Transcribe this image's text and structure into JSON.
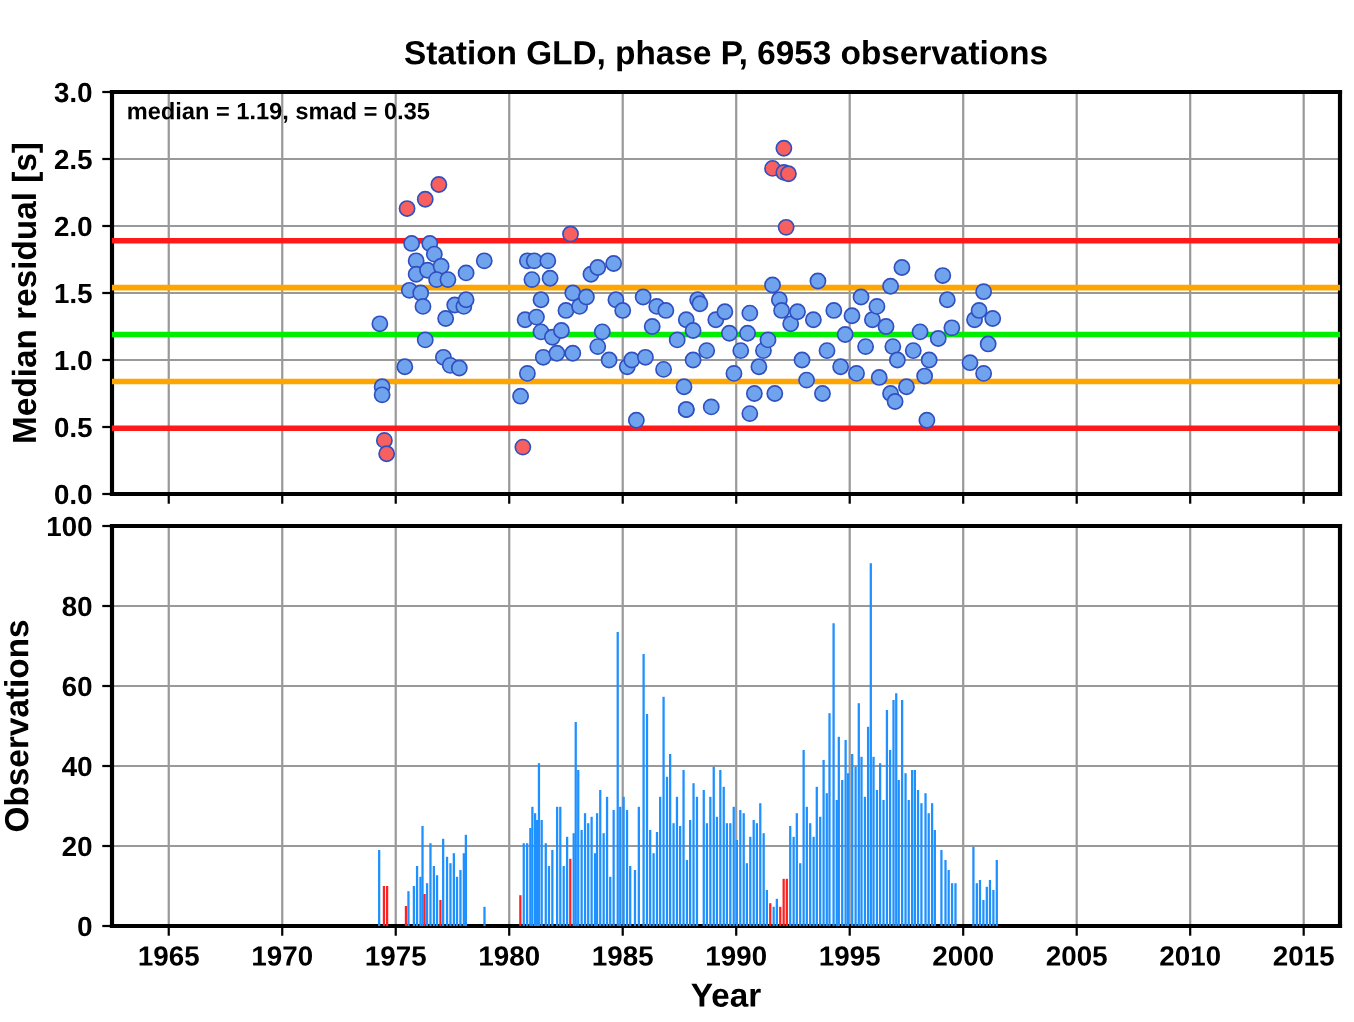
{
  "chart_data": [
    {
      "type": "scatter",
      "title": "Station GLD, phase P, 6953 observations",
      "ylabel": "Median residual [s]",
      "annotations": [
        "median = 1.19, smad = 0.35"
      ],
      "xlim": [
        1962.5,
        2016.6
      ],
      "xticks": [
        1965,
        1970,
        1975,
        1980,
        1985,
        1990,
        1995,
        2000,
        2005,
        2010,
        2015
      ],
      "ylim": [
        0,
        3
      ],
      "yticks": [
        {
          "value": 0,
          "label": "0.0"
        },
        {
          "value": 0.5,
          "label": "0.5"
        },
        {
          "value": 1,
          "label": "1.0"
        },
        {
          "value": 1.5,
          "label": "1.5"
        },
        {
          "value": 2,
          "label": "2.0"
        },
        {
          "value": 2.5,
          "label": "2.5"
        },
        {
          "value": 3,
          "label": "3.0"
        }
      ],
      "grid": true,
      "tick_labels": "y",
      "marker": "circle",
      "ref_lines": [
        {
          "axis": "y",
          "value": 0.49,
          "color": "#ff1a1a"
        },
        {
          "axis": "y",
          "value": 0.84,
          "color": "#ffa500"
        },
        {
          "axis": "y",
          "value": 1.19,
          "color": "#00ee00"
        },
        {
          "axis": "y",
          "value": 1.54,
          "color": "#ffa500"
        },
        {
          "axis": "y",
          "value": 1.89,
          "color": "#ff1a1a"
        }
      ],
      "series": [
        {
          "color": "#6fa3ee",
          "x": [
            1974.3,
            1974.4,
            1974.4,
            1975.4,
            1975.7,
            1975.9,
            1975.9,
            1975.6,
            1976.1,
            1976.2,
            1976.4,
            1976.5,
            1976.7,
            1977.0,
            1976.8,
            1977.3,
            1976.3,
            1977.1,
            1977.4,
            1977.8,
            1977.2,
            1977.6,
            1978.0,
            1978.1,
            1978.1,
            1978.9,
            1980.5,
            1980.8,
            1980.7,
            1980.8,
            1981.1,
            1981.7,
            1981.0,
            1981.4,
            1981.2,
            1981.8,
            1981.4,
            1981.9,
            1981.5,
            1982.1,
            1982.3,
            1982.5,
            1982.8,
            1983.1,
            1983.4,
            1983.6,
            1983.9,
            1984.6,
            1984.1,
            1983.9,
            1982.8,
            1984.4,
            1984.7,
            1985.0,
            1985.2,
            1985.4,
            1985.6,
            1985.9,
            1986.0,
            1986.3,
            1986.5,
            1986.8,
            1986.9,
            1987.4,
            1987.7,
            1987.8,
            1988.1,
            1988.3,
            1987.8,
            1987.8,
            1988.4,
            1988.1,
            1988.7,
            1988.9,
            1989.1,
            1989.5,
            1989.7,
            1989.9,
            1990.2,
            1990.5,
            1990.6,
            1990.6,
            1990.8,
            1991.0,
            1991.2,
            1991.4,
            1991.6,
            1991.7,
            1991.9,
            1992.0,
            1992.4,
            1992.7,
            1992.9,
            1993.1,
            1993.4,
            1993.6,
            1993.8,
            1994.0,
            1994.3,
            1994.6,
            1994.8,
            1995.1,
            1995.3,
            1995.5,
            1995.7,
            1996.0,
            1996.2,
            1996.3,
            1996.6,
            1996.8,
            1996.9,
            1997.3,
            1997.1,
            1996.8,
            1997.0,
            1997.5,
            1997.8,
            1998.1,
            1998.3,
            1998.4,
            1998.5,
            1998.9,
            1999.1,
            1999.3,
            1999.5,
            2000.3,
            2000.5,
            2000.7,
            2000.9,
            2000.9,
            2001.1,
            2001.3
          ],
          "values": [
            1.27,
            0.8,
            0.74,
            0.95,
            1.87,
            1.74,
            1.64,
            1.52,
            1.5,
            1.4,
            1.67,
            1.87,
            1.79,
            1.7,
            1.6,
            1.6,
            1.15,
            1.02,
            0.96,
            0.94,
            1.31,
            1.41,
            1.4,
            1.45,
            1.65,
            1.74,
            0.73,
            0.9,
            1.3,
            1.74,
            1.74,
            1.74,
            1.6,
            1.45,
            1.32,
            1.61,
            1.21,
            1.17,
            1.02,
            1.05,
            1.22,
            1.37,
            1.5,
            1.4,
            1.47,
            1.64,
            1.69,
            1.72,
            1.21,
            1.1,
            1.05,
            1.0,
            1.45,
            1.37,
            0.95,
            1.0,
            0.55,
            1.47,
            1.02,
            1.25,
            1.4,
            0.93,
            1.37,
            1.15,
            0.8,
            0.63,
            1.0,
            1.45,
            1.3,
            0.63,
            1.42,
            1.22,
            1.07,
            0.65,
            1.3,
            1.36,
            1.2,
            0.9,
            1.07,
            1.2,
            1.35,
            0.6,
            0.75,
            0.95,
            1.07,
            1.15,
            1.56,
            0.75,
            1.45,
            1.37,
            1.27,
            1.36,
            1.0,
            0.85,
            1.3,
            1.59,
            0.75,
            1.07,
            1.37,
            0.95,
            1.19,
            1.33,
            0.9,
            1.47,
            1.1,
            1.3,
            1.4,
            0.87,
            1.25,
            1.55,
            1.1,
            1.69,
            1.0,
            0.75,
            0.69,
            0.8,
            1.07,
            1.21,
            0.88,
            0.55,
            1.0,
            1.16,
            1.63,
            1.45,
            1.24,
            0.98,
            1.3,
            1.37,
            0.9,
            1.51,
            1.12,
            1.31
          ]
        },
        {
          "color": "#f86060",
          "x": [
            1975.5,
            1976.3,
            1976.9,
            1982.7,
            1974.5,
            1974.6,
            1980.6,
            1992.1,
            1991.6,
            1992.1,
            1992.3,
            1992.2
          ],
          "values": [
            2.13,
            2.2,
            2.31,
            1.94,
            0.4,
            0.3,
            0.35,
            2.58,
            2.43,
            2.4,
            2.39,
            1.99
          ]
        }
      ]
    },
    {
      "type": "bar",
      "xlabel": "Year",
      "ylabel": "Observations",
      "xlim": [
        1962.5,
        2016.6
      ],
      "xticks": [
        1965,
        1970,
        1975,
        1980,
        1985,
        1990,
        1995,
        2000,
        2005,
        2010,
        2015
      ],
      "ylim": [
        0,
        100
      ],
      "yticks": [
        0,
        20,
        40,
        60,
        80,
        100
      ],
      "grid": true,
      "series": [
        {
          "color": "#1e90ff",
          "x": [
            1974.27,
            1975.56,
            1975.8,
            1975.94,
            1976.09,
            1976.18,
            1976.38,
            1976.53,
            1976.68,
            1976.82,
            1977.09,
            1977.26,
            1977.41,
            1977.56,
            1977.7,
            1977.85,
            1978.0,
            1978.09,
            1978.91,
            1980.64,
            1980.79,
            1980.93,
            1981.02,
            1981.14,
            1981.23,
            1981.31,
            1981.43,
            1981.61,
            1981.75,
            1981.9,
            1982.11,
            1982.25,
            1982.4,
            1982.55,
            1982.84,
            1982.93,
            1983.04,
            1983.19,
            1983.34,
            1983.48,
            1983.63,
            1983.78,
            1983.87,
            1984.01,
            1984.16,
            1984.31,
            1984.45,
            1984.6,
            1984.78,
            1984.89,
            1985.04,
            1985.19,
            1985.33,
            1985.54,
            1985.71,
            1985.92,
            1986.07,
            1986.21,
            1986.36,
            1986.51,
            1986.65,
            1986.8,
            1986.95,
            1987.09,
            1987.24,
            1987.39,
            1987.53,
            1987.68,
            1987.83,
            1987.97,
            1988.12,
            1988.27,
            1988.57,
            1988.71,
            1988.86,
            1989.01,
            1989.15,
            1989.3,
            1989.45,
            1989.59,
            1989.74,
            1989.89,
            1990.03,
            1990.18,
            1990.33,
            1990.47,
            1990.62,
            1990.77,
            1990.91,
            1991.06,
            1991.21,
            1991.35,
            1991.65,
            1991.79,
            1992.38,
            1992.53,
            1992.67,
            1992.82,
            1992.97,
            1993.11,
            1993.26,
            1993.41,
            1993.55,
            1993.7,
            1993.85,
            1993.99,
            1994.11,
            1994.29,
            1994.43,
            1994.52,
            1994.67,
            1994.82,
            1994.93,
            1995.11,
            1995.26,
            1995.4,
            1995.52,
            1995.67,
            1995.81,
            1995.93,
            1996.05,
            1996.2,
            1996.34,
            1996.49,
            1996.64,
            1996.78,
            1996.93,
            1997.05,
            1997.16,
            1997.31,
            1997.46,
            1997.6,
            1997.75,
            1997.87,
            1998.01,
            1998.16,
            1998.34,
            1998.48,
            1998.63,
            1998.75,
            1999.04,
            1999.22,
            1999.36,
            1999.51,
            1999.66,
            2000.45,
            2000.6,
            2000.74,
            2000.89,
            2001.04,
            2001.18,
            2001.33,
            2001.48
          ],
          "values": [
            19,
            8.7,
            10,
            15,
            12.3,
            25,
            10.7,
            20.7,
            15,
            12.7,
            21.8,
            17.3,
            15.7,
            18.2,
            12.3,
            14,
            18.2,
            22.8,
            4.8,
            20.7,
            20.7,
            24.5,
            29.8,
            28.2,
            26.5,
            40.7,
            26.5,
            20.7,
            15,
            19,
            29.8,
            29.8,
            15,
            22.3,
            23.2,
            51,
            39,
            24,
            28.2,
            25.7,
            27.3,
            18.2,
            28.2,
            34,
            23.2,
            32.3,
            12.3,
            29,
            73.5,
            29.8,
            32.3,
            29,
            15,
            14,
            29.8,
            68,
            53,
            24,
            18.2,
            23.5,
            32.3,
            57.3,
            37.3,
            43,
            25.7,
            32.3,
            25,
            39,
            16.5,
            26.5,
            35.7,
            32.3,
            34,
            25.7,
            32.3,
            39.8,
            27.3,
            39,
            34.8,
            25.7,
            25.7,
            29.8,
            21.5,
            29,
            28.2,
            15.7,
            22.3,
            26.5,
            25.7,
            30.7,
            23.2,
            9,
            4.8,
            6.8,
            25,
            22.3,
            28.2,
            15.7,
            44,
            29.8,
            25.7,
            22.3,
            34.8,
            27.3,
            41.5,
            33.2,
            53.2,
            75.7,
            31.5,
            47.3,
            36.5,
            46.5,
            38.2,
            43,
            39.8,
            55.7,
            42.3,
            32.3,
            49.8,
            90.7,
            42.3,
            34,
            40.7,
            31.5,
            54,
            44,
            56.5,
            58.2,
            36.5,
            56.5,
            38.2,
            31.5,
            39,
            39,
            34,
            30.7,
            33.2,
            28.2,
            30.7,
            24,
            19,
            16.5,
            14,
            10.7,
            10.7,
            19.8,
            10.7,
            11.5,
            6.5,
            9.8,
            11.5,
            9,
            16.5
          ]
        },
        {
          "color": "#ff2020",
          "x": [
            1974.48,
            1974.62,
            1975.45,
            1976.27,
            1976.97,
            1980.49,
            1982.69,
            1991.5,
            1991.94,
            1992.09,
            1992.23
          ],
          "values": [
            10,
            10,
            5,
            8,
            6.5,
            7.7,
            16.8,
            5.7,
            4.8,
            11.8,
            11.8
          ]
        }
      ]
    }
  ]
}
